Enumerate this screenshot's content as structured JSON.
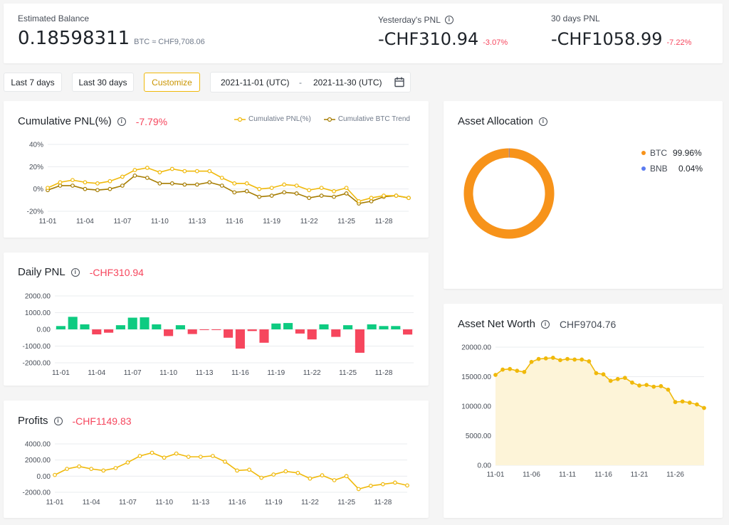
{
  "summary": {
    "estimated_balance_label": "Estimated Balance",
    "balance_value": "0.18598311",
    "balance_unit": "BTC ≈ CHF9,708.06",
    "yesterday_pnl_label": "Yesterday's PNL",
    "yesterday_pnl_value": "-CHF310.94",
    "yesterday_pnl_pct": "-3.07%",
    "days30_pnl_label": "30 days PNL",
    "days30_pnl_value": "-CHF1058.99",
    "days30_pnl_pct": "-7.22%"
  },
  "filters": {
    "last7": "Last 7 days",
    "last30": "Last 30 days",
    "customize": "Customize",
    "date_from": "2021-11-01 (UTC)",
    "date_sep": "-",
    "date_to": "2021-11-30 (UTC)"
  },
  "panels": {
    "cumulative_title": "Cumulative PNL(%)",
    "cumulative_value": "-7.79%",
    "daily_title": "Daily PNL",
    "daily_value": "-CHF310.94",
    "profits_title": "Profits",
    "profits_value": "-CHF1149.83",
    "allocation_title": "Asset Allocation",
    "networth_title": "Asset Net Worth",
    "networth_value": "CHF9704.76"
  },
  "allocation": {
    "items": [
      {
        "name": "BTC",
        "pct": "99.96%",
        "value": 99.96,
        "color": "#f7931a"
      },
      {
        "name": "BNB",
        "pct": "0.04%",
        "value": 0.04,
        "color": "#5b7bf0"
      }
    ]
  },
  "colors": {
    "yellow": "#f0b90b",
    "brown": "#a67c00",
    "green": "#0ecb81",
    "red": "#f6465d",
    "grid": "#eaecef",
    "axis_text": "#474d57"
  },
  "chart_data": [
    {
      "type": "line",
      "id": "cumulative",
      "xticks": [
        "11-01",
        "11-04",
        "11-07",
        "11-10",
        "11-13",
        "11-16",
        "11-19",
        "11-22",
        "11-25",
        "11-28"
      ],
      "yticks": [
        "40%",
        "20%",
        "0%",
        "-20%"
      ],
      "ylim": [
        -20,
        40
      ],
      "x": [
        "11-01",
        "11-02",
        "11-03",
        "11-04",
        "11-05",
        "11-06",
        "11-07",
        "11-08",
        "11-09",
        "11-10",
        "11-11",
        "11-12",
        "11-13",
        "11-14",
        "11-15",
        "11-16",
        "11-17",
        "11-18",
        "11-19",
        "11-20",
        "11-21",
        "11-22",
        "11-23",
        "11-24",
        "11-25",
        "11-26",
        "11-27",
        "11-28",
        "11-29",
        "11-30"
      ],
      "series": [
        {
          "name": "Cumulative PNL(%)",
          "color": "#f0b90b",
          "values": [
            1,
            6,
            8,
            6,
            5,
            7,
            11,
            17,
            19,
            15,
            18,
            16,
            16,
            16,
            10,
            5,
            5,
            0,
            1,
            4,
            3,
            -1,
            1,
            -2,
            1,
            -11,
            -8,
            -6,
            -6,
            -8
          ]
        },
        {
          "name": "Cumulative BTC Trend",
          "color": "#a67c00",
          "values": [
            -1,
            3,
            3,
            0,
            -1,
            0,
            3,
            12,
            10,
            5,
            5,
            4,
            4,
            6,
            3,
            -3,
            -2,
            -7,
            -6,
            -3,
            -4,
            -8,
            -6,
            -7,
            -4,
            -13,
            -11,
            -7,
            -6,
            -8
          ]
        }
      ]
    },
    {
      "type": "bar",
      "id": "daily",
      "xticks": [
        "11-01",
        "11-04",
        "11-07",
        "11-10",
        "11-13",
        "11-16",
        "11-19",
        "11-22",
        "11-25",
        "11-28"
      ],
      "yticks": [
        "2000.00",
        "1000.00",
        "0.00",
        "-1000.00",
        "-2000.00"
      ],
      "ylim": [
        -2000,
        2000
      ],
      "x": [
        "11-01",
        "11-02",
        "11-03",
        "11-04",
        "11-05",
        "11-06",
        "11-07",
        "11-08",
        "11-09",
        "11-10",
        "11-11",
        "11-12",
        "11-13",
        "11-14",
        "11-15",
        "11-16",
        "11-17",
        "11-18",
        "11-19",
        "11-20",
        "11-21",
        "11-22",
        "11-23",
        "11-24",
        "11-25",
        "11-26",
        "11-27",
        "11-28",
        "11-29",
        "11-30"
      ],
      "values": [
        200,
        750,
        300,
        -300,
        -200,
        250,
        700,
        720,
        300,
        -400,
        250,
        -280,
        -30,
        -20,
        -500,
        -1150,
        -100,
        -800,
        350,
        380,
        -250,
        -600,
        300,
        -450,
        250,
        -1400,
        300,
        200,
        200,
        -310
      ]
    },
    {
      "type": "line",
      "id": "profits",
      "xticks": [
        "11-01",
        "11-04",
        "11-07",
        "11-10",
        "11-13",
        "11-16",
        "11-19",
        "11-22",
        "11-25",
        "11-28"
      ],
      "yticks": [
        "4000.00",
        "2000.00",
        "0.00",
        "-2000.00"
      ],
      "ylim": [
        -2000,
        4000
      ],
      "x": [
        "11-01",
        "11-02",
        "11-03",
        "11-04",
        "11-05",
        "11-06",
        "11-07",
        "11-08",
        "11-09",
        "11-10",
        "11-11",
        "11-12",
        "11-13",
        "11-14",
        "11-15",
        "11-16",
        "11-17",
        "11-18",
        "11-19",
        "11-20",
        "11-21",
        "11-22",
        "11-23",
        "11-24",
        "11-25",
        "11-26",
        "11-27",
        "11-28",
        "11-29",
        "11-30"
      ],
      "series": [
        {
          "name": "Profits",
          "color": "#f0b90b",
          "values": [
            150,
            900,
            1200,
            900,
            700,
            1000,
            1700,
            2500,
            2900,
            2300,
            2800,
            2400,
            2400,
            2500,
            1800,
            700,
            800,
            -200,
            200,
            600,
            400,
            -300,
            100,
            -500,
            0,
            -1600,
            -1200,
            -1000,
            -800,
            -1150
          ]
        }
      ]
    },
    {
      "type": "area",
      "id": "networth",
      "xticks": [
        "11-01",
        "11-06",
        "11-11",
        "11-16",
        "11-21",
        "11-26"
      ],
      "yticks": [
        "20000.00",
        "15000.00",
        "10000.00",
        "5000.00",
        "0.00"
      ],
      "ylim": [
        0,
        20000
      ],
      "x": [
        "11-01",
        "11-02",
        "11-03",
        "11-04",
        "11-05",
        "11-06",
        "11-07",
        "11-08",
        "11-09",
        "11-10",
        "11-11",
        "11-12",
        "11-13",
        "11-14",
        "11-15",
        "11-16",
        "11-17",
        "11-18",
        "11-19",
        "11-20",
        "11-21",
        "11-22",
        "11-23",
        "11-24",
        "11-25",
        "11-26",
        "11-27",
        "11-28",
        "11-29",
        "11-30"
      ],
      "series": [
        {
          "name": "Asset Net Worth",
          "color": "#f0b90b",
          "values": [
            15300,
            16200,
            16300,
            16000,
            15800,
            17500,
            18000,
            18100,
            18200,
            17800,
            18000,
            17900,
            17900,
            17600,
            15600,
            15400,
            14300,
            14600,
            14800,
            14000,
            13500,
            13600,
            13300,
            13400,
            12800,
            10700,
            10800,
            10600,
            10300,
            9700
          ]
        }
      ]
    }
  ]
}
